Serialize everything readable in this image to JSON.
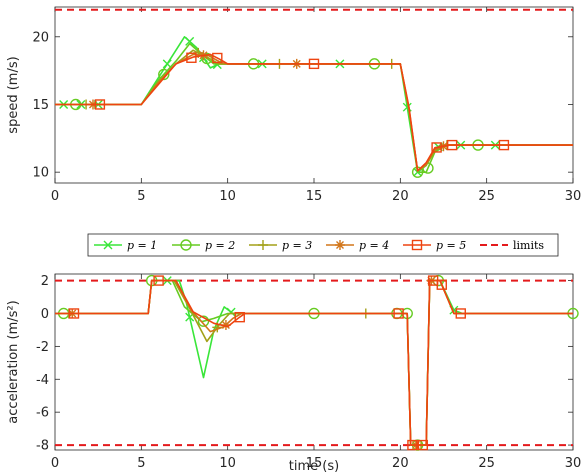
{
  "legend": {
    "placement": "between-panels",
    "entries": [
      {
        "label": "p = 1",
        "color": "#39e639",
        "marker": "x"
      },
      {
        "label": "p = 2",
        "color": "#66cc22",
        "marker": "o"
      },
      {
        "label": "p = 3",
        "color": "#a3a018",
        "marker": "+"
      },
      {
        "label": "p = 4",
        "color": "#d2761a",
        "marker": "*"
      },
      {
        "label": "p = 5",
        "color": "#ee4411",
        "marker": "s"
      },
      {
        "label": "limits",
        "color": "#e41a1c",
        "marker": "dashed"
      }
    ]
  },
  "chart_data": [
    {
      "type": "line",
      "ylabel": "speed (m/s)",
      "xlabel": "",
      "xlim": [
        0,
        30
      ],
      "ylim": [
        9.2,
        22.2
      ],
      "xticks": [
        0,
        5,
        10,
        15,
        20,
        25,
        30
      ],
      "yticks": [
        10,
        15,
        20
      ],
      "grid": false,
      "limit_lines": [
        22
      ],
      "series": [
        {
          "name": "p = 1",
          "color": "#39e639",
          "marker": "x",
          "x": [
            0,
            5,
            6,
            7.5,
            8.2,
            9,
            9.5,
            10,
            20,
            20.5,
            21,
            21.5,
            22,
            22.5,
            30
          ],
          "y": [
            15,
            15,
            17,
            20,
            19.2,
            17.7,
            18,
            18,
            18,
            14,
            10,
            10.5,
            11.8,
            12,
            12
          ],
          "markers_x": [
            0.5,
            1.5,
            2.5,
            6.5,
            7.8,
            8.6,
            9.4,
            12,
            16.5,
            20.4,
            21,
            22.2,
            23.5,
            25.5
          ]
        },
        {
          "name": "p = 2",
          "color": "#66cc22",
          "marker": "o",
          "x": [
            0,
            5,
            6,
            7,
            7.8,
            8.5,
            9.2,
            10,
            20,
            20.5,
            21,
            21.5,
            22,
            22.7,
            30
          ],
          "y": [
            15,
            15,
            16.8,
            18.2,
            19.5,
            18.7,
            18,
            18,
            18,
            14.5,
            10,
            10,
            11.5,
            12,
            12
          ],
          "markers_x": [
            1.2,
            6.3,
            8.8,
            11.5,
            18.5,
            21,
            21.6,
            24.5
          ]
        },
        {
          "name": "p = 3",
          "color": "#a3a018",
          "marker": "+",
          "x": [
            0,
            5,
            6,
            7,
            8,
            8.8,
            9.5,
            10,
            20,
            20.5,
            21,
            21.5,
            22,
            22.7,
            30
          ],
          "y": [
            15,
            15,
            16.7,
            18,
            19,
            18.5,
            18,
            18,
            18,
            14.6,
            10.1,
            10.5,
            11.6,
            12,
            12
          ],
          "markers_x": [
            1.8,
            8.3,
            13,
            19.5,
            22.7
          ]
        },
        {
          "name": "p = 4",
          "color": "#d2761a",
          "marker": "*",
          "x": [
            0,
            5,
            6,
            7,
            8,
            8.9,
            9.6,
            10,
            20,
            20.5,
            21,
            21.5,
            22,
            22.7,
            30
          ],
          "y": [
            15,
            15,
            16.6,
            18,
            18.7,
            18.6,
            18.1,
            18,
            18,
            14.7,
            10.1,
            10.6,
            11.7,
            12,
            12
          ],
          "markers_x": [
            2.2,
            8.6,
            14,
            22.5
          ]
        },
        {
          "name": "p = 5",
          "color": "#ee4411",
          "marker": "s",
          "x": [
            0,
            5,
            6,
            7,
            8,
            9,
            9.6,
            10,
            20,
            20.5,
            21,
            21.5,
            22,
            22.8,
            30
          ],
          "y": [
            15,
            15,
            16.5,
            18,
            18.5,
            18.7,
            18.3,
            18,
            18,
            14.8,
            10.1,
            10.7,
            11.8,
            12,
            12
          ],
          "markers_x": [
            2.6,
            7.9,
            9.4,
            15,
            22.1,
            23,
            26
          ]
        }
      ]
    },
    {
      "type": "line",
      "ylabel": "acceleration (m/s²)",
      "xlabel": "time (s)",
      "xlim": [
        0,
        30
      ],
      "ylim": [
        -8.3,
        2.4
      ],
      "xticks": [
        0,
        5,
        10,
        15,
        20,
        25,
        30
      ],
      "yticks": [
        -8,
        -6,
        -4,
        -2,
        0,
        2
      ],
      "grid": false,
      "limit_lines": [
        2,
        -8
      ],
      "series": [
        {
          "name": "p = 1",
          "color": "#39e639",
          "marker": "x",
          "x": [
            0,
            5.4,
            5.6,
            7.2,
            7.6,
            8.6,
            9.2,
            9.8,
            10.3,
            20,
            20.4,
            20.6,
            21.5,
            21.7,
            22.3,
            23.1,
            23.6,
            30
          ],
          "y": [
            0,
            0,
            2,
            2,
            0.7,
            -3.9,
            -1,
            0.4,
            0,
            0,
            0,
            -8,
            -8,
            2,
            2,
            0.2,
            0,
            0
          ],
          "markers_x": [
            6.5,
            7.8,
            10.2,
            23.1
          ]
        },
        {
          "name": "p = 2",
          "color": "#66cc22",
          "marker": "o",
          "x": [
            0,
            5.4,
            5.6,
            6.8,
            7.5,
            8.5,
            9.2,
            10,
            10.5,
            20,
            20.4,
            20.6,
            21.5,
            21.7,
            22.3,
            23.1,
            23.6,
            30
          ],
          "y": [
            0,
            0,
            2,
            2,
            0.4,
            -0.5,
            -0.3,
            0,
            0,
            0,
            0,
            -8,
            -8,
            2,
            2,
            0,
            0,
            0
          ],
          "markers_x": [
            0.5,
            5.6,
            8.6,
            15,
            19.8,
            20.4,
            21,
            22.2,
            30
          ]
        },
        {
          "name": "p = 3",
          "color": "#a3a018",
          "marker": "+",
          "x": [
            0,
            5.4,
            5.6,
            6.9,
            7.8,
            8.8,
            9.5,
            10.1,
            10.6,
            20,
            20.4,
            20.6,
            21.5,
            21.7,
            22.3,
            23.1,
            23.6,
            30
          ],
          "y": [
            0,
            0,
            2,
            2,
            0.3,
            -1.7,
            -0.7,
            0,
            0,
            0,
            0,
            -8,
            -8,
            2,
            2,
            0,
            0,
            0
          ],
          "markers_x": [
            0.8,
            9.4,
            18,
            21.2
          ]
        },
        {
          "name": "p = 4",
          "color": "#d2761a",
          "marker": "*",
          "x": [
            0,
            5.4,
            5.6,
            7,
            7.9,
            9,
            9.8,
            10.3,
            10.8,
            20,
            20.4,
            20.6,
            21.5,
            21.7,
            22.3,
            23.1,
            23.6,
            30
          ],
          "y": [
            0,
            0,
            2,
            2,
            0.2,
            -1.1,
            -0.8,
            -0.3,
            0,
            0,
            0,
            -8,
            -8,
            2,
            2,
            0,
            0,
            0
          ],
          "markers_x": [
            1,
            9.9,
            20.9,
            21.8
          ]
        },
        {
          "name": "p = 5",
          "color": "#ee4411",
          "marker": "s",
          "x": [
            0,
            5.4,
            5.6,
            7,
            8,
            9.2,
            10,
            10.6,
            11,
            20,
            20.4,
            20.6,
            21.5,
            21.7,
            22.3,
            23.1,
            23.6,
            30
          ],
          "y": [
            0,
            0,
            2,
            2,
            0.1,
            -0.6,
            -0.8,
            -0.3,
            0,
            0,
            0,
            -8,
            -8,
            2,
            2,
            0,
            0,
            0
          ],
          "markers_x": [
            1.1,
            6,
            10.7,
            19.9,
            20.7,
            21.3,
            21.9,
            22.4,
            23.5
          ]
        }
      ]
    }
  ]
}
